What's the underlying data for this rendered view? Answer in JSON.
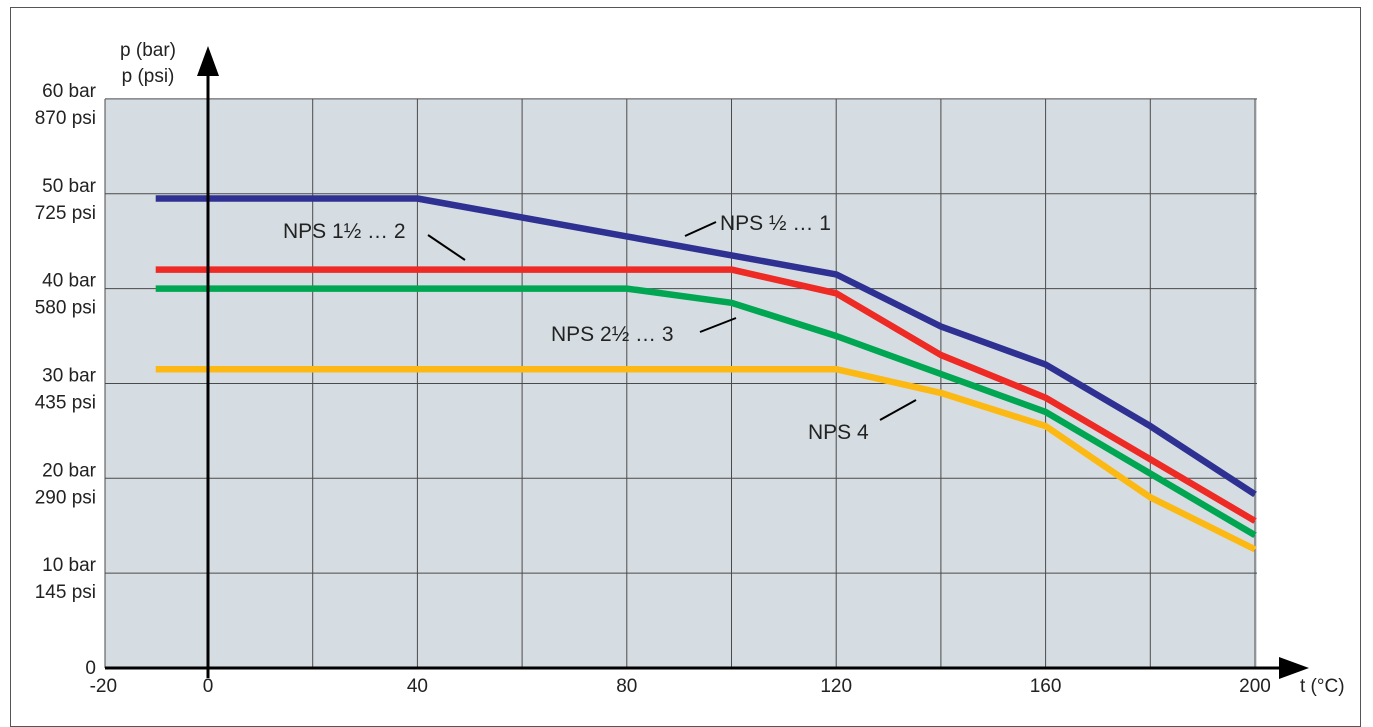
{
  "chart_data": {
    "type": "line",
    "title": "",
    "xlabel": "t (°C)",
    "ylabel_bar": "p (bar)",
    "ylabel_psi": "p (psi)",
    "xlim": [
      -20,
      200
    ],
    "ylim": [
      0,
      60
    ],
    "grid": true,
    "background": "#d5dde3",
    "x_ticks": [
      {
        "value": -20,
        "label": "-20"
      },
      {
        "value": 0,
        "label": "0"
      },
      {
        "value": 40,
        "label": "40"
      },
      {
        "value": 80,
        "label": "80"
      },
      {
        "value": 120,
        "label": "120"
      },
      {
        "value": 160,
        "label": "160"
      },
      {
        "value": 200,
        "label": "200"
      }
    ],
    "y_ticks": [
      {
        "value": 0,
        "bar": "0",
        "psi": ""
      },
      {
        "value": 10,
        "bar": "10 bar",
        "psi": "145 psi"
      },
      {
        "value": 20,
        "bar": "20 bar",
        "psi": "290 psi"
      },
      {
        "value": 30,
        "bar": "30 bar",
        "psi": "435 psi"
      },
      {
        "value": 40,
        "bar": "40 bar",
        "psi": "580 psi"
      },
      {
        "value": 50,
        "bar": "50 bar",
        "psi": "725 psi"
      },
      {
        "value": 60,
        "bar": "60 bar",
        "psi": "870 psi"
      }
    ],
    "series": [
      {
        "name": "NPS ½ … 1",
        "color": "#2e3192",
        "x": [
          -10,
          40,
          80,
          120,
          140,
          160,
          180,
          200
        ],
        "y": [
          49.5,
          49.5,
          45.5,
          41.5,
          36,
          32,
          25.5,
          18.3
        ]
      },
      {
        "name": "NPS 1½ … 2",
        "color": "#ee2a24",
        "x": [
          -10,
          100,
          120,
          140,
          160,
          180,
          200
        ],
        "y": [
          42,
          42,
          39.5,
          33,
          28.5,
          22,
          15.5
        ]
      },
      {
        "name": "NPS 2½ … 3",
        "color": "#00a651",
        "x": [
          -10,
          80,
          100,
          120,
          140,
          160,
          180,
          200
        ],
        "y": [
          40,
          40,
          38.5,
          35,
          31,
          27,
          20.5,
          14
        ]
      },
      {
        "name": "NPS 4",
        "color": "#fdb913",
        "x": [
          -10,
          120,
          140,
          160,
          180,
          200
        ],
        "y": [
          31.5,
          31.5,
          29,
          25.5,
          18,
          12.5
        ]
      }
    ]
  }
}
